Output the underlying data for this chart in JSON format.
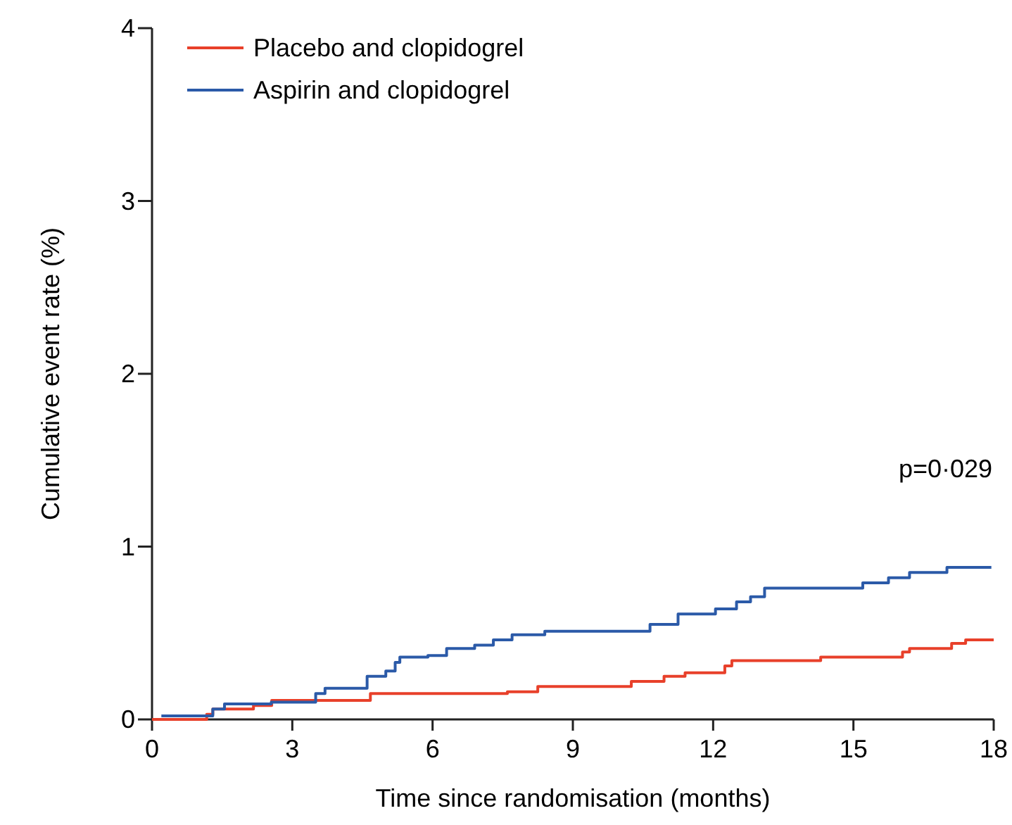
{
  "chart_data": {
    "type": "step",
    "xlabel": "Time since randomisation (months)",
    "ylabel": "Cumulative event rate (%)",
    "annotations": [
      "p=0·029"
    ],
    "xlim": [
      0,
      18
    ],
    "xticks": [
      0,
      3,
      6,
      9,
      12,
      15,
      18
    ],
    "ylim": [
      0,
      4
    ],
    "yticks": [
      0,
      1,
      2,
      3,
      4
    ],
    "grid": false,
    "legend": "top left",
    "series": [
      {
        "name": "Placebo and clopidogrel",
        "color": "#e8402a",
        "x": [
          0,
          1.17,
          1.3,
          2.17,
          2.56,
          4.67,
          7.6,
          8.25,
          10.25,
          10.95,
          11.4,
          12.25,
          12.4,
          14.3,
          16.05,
          16.2,
          17.1,
          17.4,
          18
        ],
        "values": [
          0,
          0.03,
          0.06,
          0.08,
          0.11,
          0.15,
          0.16,
          0.19,
          0.22,
          0.25,
          0.27,
          0.31,
          0.34,
          0.36,
          0.39,
          0.41,
          0.44,
          0.46,
          0.46
        ]
      },
      {
        "name": "Aspirin and clopidogrel",
        "color": "#2b5aa8",
        "x": [
          0.2,
          1.3,
          1.55,
          2.55,
          3.5,
          3.7,
          4.6,
          5.0,
          5.2,
          5.3,
          5.9,
          6.3,
          6.9,
          7.3,
          7.7,
          8.4,
          10.65,
          11.25,
          12.05,
          12.5,
          12.8,
          13.1,
          15.2,
          15.75,
          16.2,
          17.0,
          17.95
        ],
        "values": [
          0.02,
          0.06,
          0.09,
          0.1,
          0.15,
          0.18,
          0.25,
          0.28,
          0.33,
          0.36,
          0.37,
          0.41,
          0.43,
          0.46,
          0.49,
          0.51,
          0.55,
          0.61,
          0.64,
          0.68,
          0.71,
          0.76,
          0.79,
          0.82,
          0.85,
          0.88,
          0.88
        ]
      }
    ]
  }
}
